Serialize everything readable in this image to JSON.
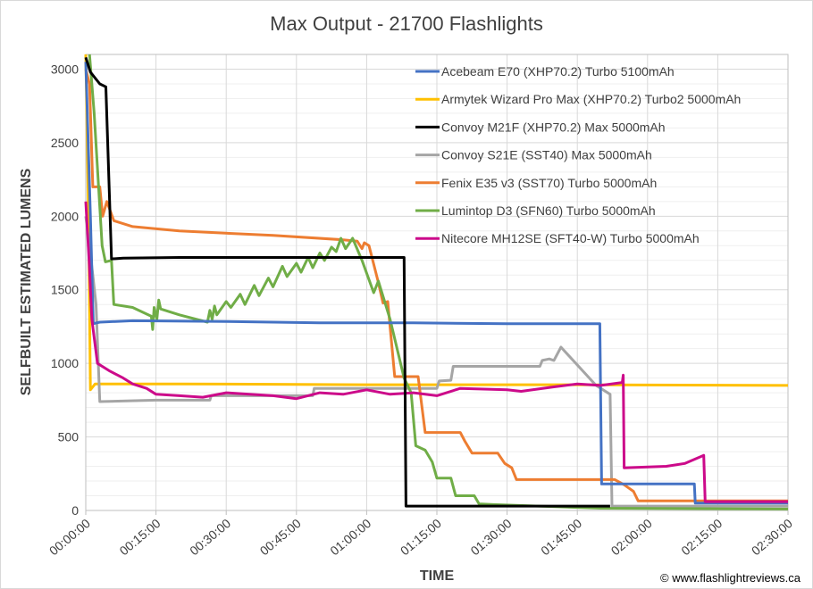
{
  "chart_data": {
    "type": "line",
    "title": "Max Output - 21700 Flashlights",
    "xlabel": "TIME",
    "ylabel": "SELFBUILT ESTIMATED LUMENS",
    "xlim_minutes": [
      0,
      150
    ],
    "ylim": [
      0,
      3100
    ],
    "grid": true,
    "legend_position": "top-right",
    "y_ticks": [
      0,
      500,
      1000,
      1500,
      2000,
      2500,
      3000
    ],
    "x_ticks": [
      {
        "minutes": 0,
        "label": "00:00:00"
      },
      {
        "minutes": 15,
        "label": "00:15:00"
      },
      {
        "minutes": 30,
        "label": "00:30:00"
      },
      {
        "minutes": 45,
        "label": "00:45:00"
      },
      {
        "minutes": 60,
        "label": "01:00:00"
      },
      {
        "minutes": 75,
        "label": "01:15:00"
      },
      {
        "minutes": 90,
        "label": "01:30:00"
      },
      {
        "minutes": 105,
        "label": "01:45:00"
      },
      {
        "minutes": 120,
        "label": "02:00:00"
      },
      {
        "minutes": 135,
        "label": "02:15:00"
      },
      {
        "minutes": 150,
        "label": "02:30:00"
      }
    ],
    "series": [
      {
        "name": "Acebeam E70 (XHP70.2) Turbo 5100mAh",
        "color": "#4472C4",
        "points": [
          [
            0,
            3050
          ],
          [
            1,
            2000
          ],
          [
            1.6,
            1270
          ],
          [
            3,
            1280
          ],
          [
            10,
            1290
          ],
          [
            30,
            1285
          ],
          [
            50,
            1275
          ],
          [
            70,
            1275
          ],
          [
            90,
            1270
          ],
          [
            109.8,
            1270
          ],
          [
            110.2,
            180
          ],
          [
            130,
            180
          ],
          [
            130.2,
            50
          ],
          [
            150,
            50
          ]
        ]
      },
      {
        "name": "Armytek Wizard Pro Max (XHP70.2) Turbo2 5000mAh",
        "color": "#FFC000",
        "points": [
          [
            0,
            3100
          ],
          [
            0.6,
            2000
          ],
          [
            1,
            820
          ],
          [
            2,
            860
          ],
          [
            20,
            860
          ],
          [
            60,
            855
          ],
          [
            100,
            855
          ],
          [
            150,
            850
          ]
        ]
      },
      {
        "name": "Convoy M21F (XHP70.2) Max 5000mAh",
        "color": "#000000",
        "points": [
          [
            0,
            3080
          ],
          [
            1,
            2980
          ],
          [
            3,
            2900
          ],
          [
            4.3,
            2880
          ],
          [
            5.5,
            1710
          ],
          [
            8,
            1715
          ],
          [
            20,
            1720
          ],
          [
            40,
            1720
          ],
          [
            68,
            1720
          ],
          [
            68.4,
            30
          ],
          [
            112,
            30
          ]
        ]
      },
      {
        "name": "Convoy S21E (SST40) Max 5000mAh",
        "color": "#A5A5A5",
        "points": [
          [
            0,
            2000
          ],
          [
            1.5,
            1600
          ],
          [
            2.2,
            1400
          ],
          [
            3,
            740
          ],
          [
            15,
            750
          ],
          [
            26.5,
            750
          ],
          [
            26.8,
            780
          ],
          [
            48.5,
            780
          ],
          [
            48.8,
            830
          ],
          [
            75,
            830
          ],
          [
            75.5,
            880
          ],
          [
            78,
            885
          ],
          [
            78.5,
            980
          ],
          [
            97,
            980
          ],
          [
            97.5,
            1020
          ],
          [
            99,
            1030
          ],
          [
            100,
            1020
          ],
          [
            101.5,
            1110
          ],
          [
            109,
            850
          ],
          [
            112,
            790
          ],
          [
            112.4,
            30
          ],
          [
            150,
            30
          ]
        ]
      },
      {
        "name": "Fenix E35 v3 (SST70) Turbo 5000mAh",
        "color": "#ED7D31",
        "points": [
          [
            0,
            3000
          ],
          [
            0.8,
            2900
          ],
          [
            1.5,
            2200
          ],
          [
            3,
            2200
          ],
          [
            3.6,
            2000
          ],
          [
            4.5,
            2100
          ],
          [
            6,
            1970
          ],
          [
            10,
            1930
          ],
          [
            20,
            1900
          ],
          [
            40,
            1870
          ],
          [
            55,
            1840
          ],
          [
            58,
            1830
          ],
          [
            59,
            1780
          ],
          [
            59.5,
            1820
          ],
          [
            60.5,
            1800
          ],
          [
            62.5,
            1550
          ],
          [
            63.5,
            1410
          ],
          [
            64.5,
            1420
          ],
          [
            66,
            910
          ],
          [
            71,
            910
          ],
          [
            72.5,
            530
          ],
          [
            80,
            530
          ],
          [
            81,
            470
          ],
          [
            82.5,
            390
          ],
          [
            88,
            390
          ],
          [
            89.5,
            320
          ],
          [
            91,
            290
          ],
          [
            92,
            210
          ],
          [
            113,
            210
          ],
          [
            115,
            175
          ],
          [
            117,
            130
          ],
          [
            118,
            65
          ],
          [
            150,
            65
          ]
        ]
      },
      {
        "name": "Lumintop D3 (SFN60) Turbo 5000mAh",
        "color": "#70AD47",
        "points": [
          [
            0.8,
            3100
          ],
          [
            1.8,
            2700
          ],
          [
            3.5,
            1800
          ],
          [
            4.2,
            1690
          ],
          [
            5.5,
            1700
          ],
          [
            6,
            1400
          ],
          [
            10,
            1380
          ],
          [
            14,
            1320
          ],
          [
            14.3,
            1230
          ],
          [
            14.6,
            1380
          ],
          [
            15.2,
            1300
          ],
          [
            15.6,
            1430
          ],
          [
            16,
            1370
          ],
          [
            20,
            1330
          ],
          [
            26,
            1280
          ],
          [
            26.5,
            1360
          ],
          [
            27,
            1300
          ],
          [
            27.5,
            1390
          ],
          [
            28,
            1330
          ],
          [
            30,
            1420
          ],
          [
            31,
            1380
          ],
          [
            33,
            1470
          ],
          [
            34,
            1400
          ],
          [
            36,
            1530
          ],
          [
            37,
            1460
          ],
          [
            39,
            1580
          ],
          [
            40,
            1520
          ],
          [
            42,
            1660
          ],
          [
            43,
            1590
          ],
          [
            45,
            1680
          ],
          [
            46,
            1620
          ],
          [
            47.5,
            1720
          ],
          [
            48.5,
            1650
          ],
          [
            50,
            1750
          ],
          [
            51,
            1700
          ],
          [
            52.5,
            1790
          ],
          [
            53.5,
            1760
          ],
          [
            54.5,
            1850
          ],
          [
            55.5,
            1780
          ],
          [
            57,
            1850
          ],
          [
            59,
            1700
          ],
          [
            61.5,
            1480
          ],
          [
            62.5,
            1560
          ],
          [
            65,
            1300
          ],
          [
            68,
            900
          ],
          [
            69.5,
            800
          ],
          [
            70.5,
            440
          ],
          [
            72.5,
            410
          ],
          [
            74,
            330
          ],
          [
            75,
            220
          ],
          [
            78,
            220
          ],
          [
            79,
            100
          ],
          [
            83,
            100
          ],
          [
            84,
            45
          ],
          [
            87,
            40
          ],
          [
            110,
            15
          ],
          [
            150,
            10
          ]
        ]
      },
      {
        "name": "Nitecore MH12SE (SFT40-W) Turbo 5000mAh",
        "color": "#CC0A8A",
        "points": [
          [
            0,
            2100
          ],
          [
            0.7,
            1700
          ],
          [
            1.3,
            1300
          ],
          [
            2.5,
            1000
          ],
          [
            5,
            950
          ],
          [
            8,
            900
          ],
          [
            10,
            860
          ],
          [
            13,
            830
          ],
          [
            15,
            790
          ],
          [
            20,
            780
          ],
          [
            25,
            770
          ],
          [
            30,
            800
          ],
          [
            35,
            790
          ],
          [
            40,
            780
          ],
          [
            45,
            760
          ],
          [
            50,
            800
          ],
          [
            55,
            790
          ],
          [
            60,
            820
          ],
          [
            65,
            790
          ],
          [
            70,
            800
          ],
          [
            75,
            780
          ],
          [
            80,
            830
          ],
          [
            90,
            820
          ],
          [
            93,
            810
          ],
          [
            100,
            840
          ],
          [
            105,
            860
          ],
          [
            110,
            850
          ],
          [
            114.6,
            870
          ],
          [
            114.8,
            920
          ],
          [
            115,
            290
          ],
          [
            124,
            300
          ],
          [
            128,
            320
          ],
          [
            132,
            375
          ],
          [
            132.3,
            60
          ],
          [
            150,
            60
          ]
        ]
      }
    ]
  },
  "watermark": "© www.flashlightreviews.ca"
}
